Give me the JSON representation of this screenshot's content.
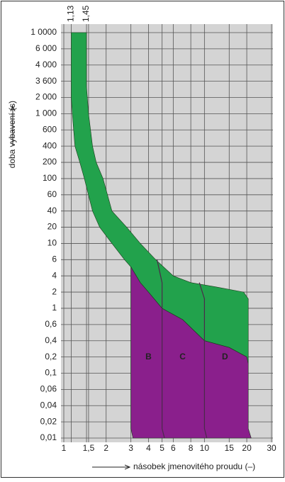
{
  "chart_data": {
    "type": "area",
    "ylabel": "doba vybavení (s)",
    "xlabel": "násobek jmenovitého proudu (–)",
    "xlim": [
      1,
      30
    ],
    "log_x": true,
    "xticks": [
      1,
      {
        "value": 1.5,
        "label": "1,5"
      },
      2,
      3,
      4,
      5,
      6,
      8,
      10,
      15,
      20,
      30
    ],
    "ylim": [
      0.01,
      10000
    ],
    "yticks": [
      {
        "value": 10000,
        "label": "1 0000"
      },
      {
        "value": 6000,
        "label": "6 000"
      },
      {
        "value": 4000,
        "label": "4 000"
      },
      {
        "value": 3600,
        "label": "3 600"
      },
      {
        "value": 2000,
        "label": "2 000"
      },
      {
        "value": 1000,
        "label": "1 000"
      },
      600,
      400,
      200,
      100,
      60,
      40,
      20,
      10,
      6,
      4,
      2,
      1,
      {
        "value": 0.6,
        "label": "0,6"
      },
      {
        "value": 0.4,
        "label": "0,4"
      },
      {
        "value": 0.2,
        "label": "0,2"
      },
      {
        "value": 0.1,
        "label": "0,1"
      },
      {
        "value": 0.06,
        "label": "0,06"
      },
      {
        "value": 0.04,
        "label": "0,04"
      },
      {
        "value": 0.02,
        "label": "0,02"
      },
      {
        "value": 0.01,
        "label": "0,01"
      }
    ],
    "grid": true,
    "series": [
      {
        "color": "#22a24c",
        "x": [
          1.13,
          1.13,
          1.15,
          1.2,
          1.3,
          1.4,
          1.6,
          1.8,
          2.2,
          2.7,
          3,
          3.5,
          4,
          5,
          7,
          10,
          15,
          20,
          20.5,
          20.5,
          19,
          12,
          8,
          6,
          4.5,
          3.5,
          2.8,
          2.2,
          1.9,
          1.7,
          1.6,
          1.5,
          1.45,
          1.45
        ],
        "values": [
          10000,
          2000,
          1000,
          400,
          200,
          100,
          40,
          20,
          10,
          6,
          5,
          3,
          2,
          1,
          0.7,
          0.4,
          0.3,
          0.2,
          0.15,
          1.5,
          2,
          2.5,
          3,
          4,
          6,
          10,
          20,
          40,
          100,
          200,
          400,
          1000,
          3000,
          10000
        ]
      },
      {
        "color": "#8a1f8c",
        "x": [
          3,
          3.5,
          4,
          5,
          7,
          10,
          15,
          20,
          20.5,
          20.5,
          21.5,
          3.1,
          3
        ],
        "values": [
          5,
          3,
          2,
          1,
          0.7,
          0.4,
          0.3,
          0.2,
          0.15,
          0.015,
          0.01,
          0.01,
          0.015
        ]
      }
    ],
    "lines": [
      {
        "color": "#4a2a4a",
        "x": [
          4.6,
          5,
          5,
          5.2
        ],
        "values": [
          6,
          3,
          0.015,
          0.01
        ]
      },
      {
        "color": "#4a2a4a",
        "x": [
          9.2,
          10,
          10,
          10.4
        ],
        "values": [
          3,
          1.5,
          0.015,
          0.01
        ]
      }
    ],
    "annotations": [
      {
        "x": 1.13,
        "label": "1,13"
      },
      {
        "x": 1.45,
        "label": "1,45"
      }
    ],
    "regions": [
      {
        "x": 4,
        "y": 0.2,
        "label": "B"
      },
      {
        "x": 7,
        "y": 0.2,
        "label": "C"
      },
      {
        "x": 14,
        "y": 0.2,
        "label": "D"
      }
    ]
  }
}
